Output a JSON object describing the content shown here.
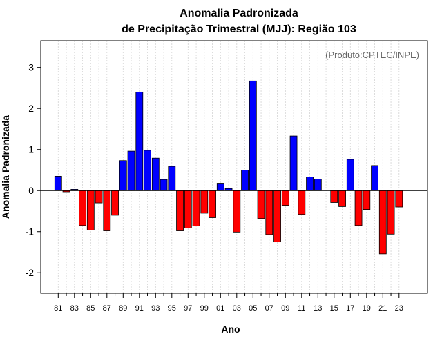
{
  "chart_data": {
    "type": "bar",
    "title_line1": "Anomalia Padronizada",
    "title_line2": "de Precipitação Trimestral (MJJ): Região 103",
    "credit": "(Produto:CPTEC/INPE)",
    "xlabel": "Ano",
    "ylabel": "Anomalia Padronizada",
    "ylim": [
      -2.5,
      3.65
    ],
    "yticks": [
      -2,
      -1,
      0,
      1,
      2,
      3
    ],
    "ytick_labels": [
      "-2",
      "-1",
      "0",
      "1",
      "2",
      "3"
    ],
    "categories": [
      "81",
      "82",
      "83",
      "84",
      "85",
      "86",
      "87",
      "88",
      "89",
      "90",
      "91",
      "92",
      "93",
      "94",
      "95",
      "96",
      "97",
      "98",
      "99",
      "00",
      "01",
      "02",
      "03",
      "04",
      "05",
      "06",
      "07",
      "08",
      "09",
      "10",
      "11",
      "12",
      "13",
      "14",
      "15",
      "16",
      "17",
      "18",
      "19",
      "20",
      "21",
      "22",
      "23"
    ],
    "xtick_labels": [
      "81",
      "83",
      "85",
      "87",
      "89",
      "91",
      "93",
      "95",
      "97",
      "99",
      "01",
      "03",
      "05",
      "07",
      "09",
      "11",
      "13",
      "15",
      "17",
      "19",
      "21",
      "23"
    ],
    "values": [
      0.35,
      -0.03,
      0.03,
      -0.85,
      -0.96,
      -0.3,
      -0.98,
      -0.6,
      0.73,
      0.96,
      2.4,
      0.98,
      0.79,
      0.27,
      0.59,
      -0.98,
      -0.91,
      -0.86,
      -0.55,
      -0.66,
      0.18,
      0.05,
      -1.01,
      0.5,
      2.67,
      -0.68,
      -1.07,
      -1.25,
      -0.36,
      1.33,
      -0.58,
      0.33,
      0.28,
      0.0,
      -0.29,
      -0.39,
      0.76,
      -0.85,
      -0.46,
      0.61,
      -1.54,
      -1.06,
      -0.4
    ],
    "colors": {
      "positive": "#0000ff",
      "negative": "#ff0000",
      "border": "#000000",
      "grid": "#d3d3d3",
      "zero_line": "#000000",
      "credit": "#666666"
    },
    "grid": true
  }
}
